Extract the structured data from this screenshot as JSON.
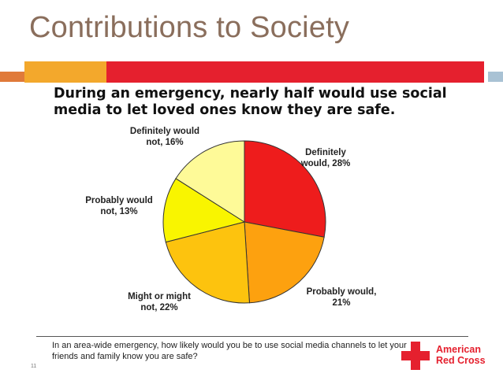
{
  "slide": {
    "title": "Contributions to Society",
    "page_number": "11",
    "question": "In an area-wide emergency, how likely would you be to use social media channels to let your friends and family know you are safe?",
    "logo": {
      "line1": "American",
      "line2": "Red Cross",
      "color": "#e5202e"
    }
  },
  "chart_data": {
    "type": "pie",
    "title": "During an emergency, nearly half would use social media to let loved ones know they are safe.",
    "slices": [
      {
        "label_line1": "Definitely",
        "label_line2": "would, 28%",
        "value": 28,
        "color": "#ee1c1c"
      },
      {
        "label_line1": "Probably would,",
        "label_line2": "21%",
        "value": 21,
        "color": "#fda10f"
      },
      {
        "label_line1": "Might or might",
        "label_line2": "not, 22%",
        "value": 22,
        "color": "#fdc30e"
      },
      {
        "label_line1": "Probably would",
        "label_line2": "not, 13%",
        "value": 13,
        "color": "#f9f500"
      },
      {
        "label_line1": "Definitely would",
        "label_line2": "not, 16%",
        "value": 16,
        "color": "#fefa98"
      }
    ]
  }
}
